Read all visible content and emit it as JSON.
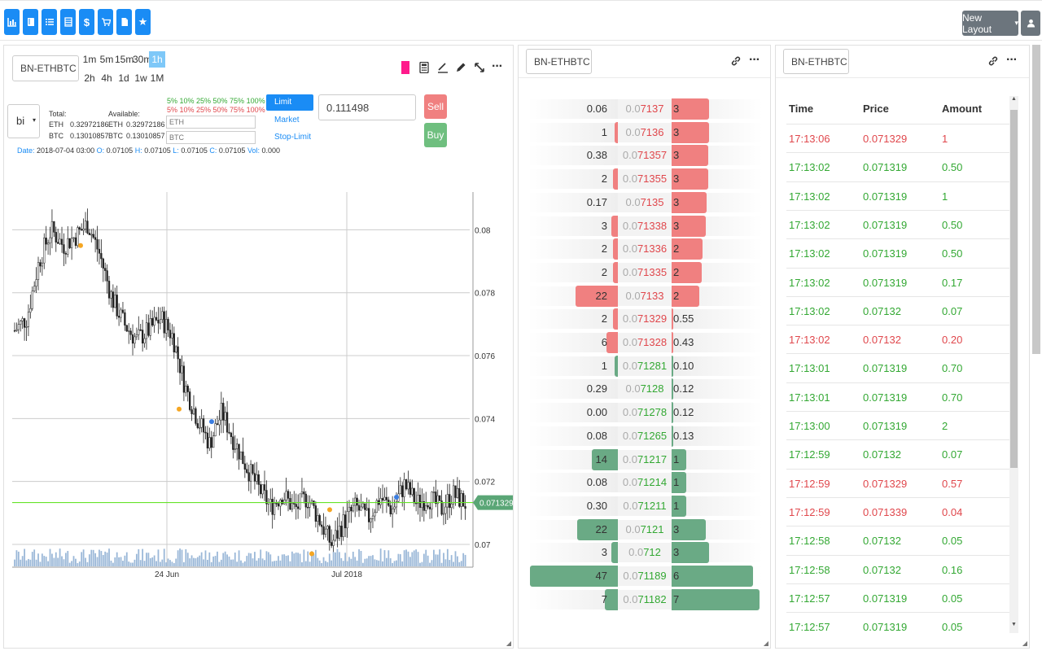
{
  "toolbar": {
    "buttons": [
      {
        "icon": "bar-chart-icon"
      },
      {
        "icon": "book-icon"
      },
      {
        "icon": "list-icon"
      },
      {
        "icon": "table-icon"
      },
      {
        "icon": "dollar-icon"
      },
      {
        "icon": "cart-icon"
      },
      {
        "icon": "file-icon"
      },
      {
        "icon": "star-icon"
      }
    ],
    "layout_label": "New Layout",
    "layout_caret": "▾"
  },
  "chart_panel": {
    "symbol": "BN-ETHBTC",
    "timeframes": [
      "1m",
      "5m",
      "15m",
      "30m",
      "1h",
      "2h",
      "4h",
      "1d",
      "1w",
      "1M"
    ],
    "active_timeframe": "1h",
    "select_value": "bi",
    "select_caret": "▾",
    "total_label": "Total:",
    "available_label": "Available:",
    "eth_label": "ETH",
    "btc_label": "BTC",
    "total_eth": "0.32972186",
    "total_btc": "0.13010857",
    "avail_eth": "0.32972186",
    "avail_btc": "0.13010857",
    "pct_buy": "5% 10% 25% 50% 75% 100%",
    "pct_sell": "5% 10% 25% 50% 75% 100%",
    "eth_placeholder": "ETH",
    "btc_placeholder": "BTC",
    "order_types": [
      "Limit",
      "Market",
      "Stop-Limit"
    ],
    "price_value": "0.111498",
    "sell_label": "Sell",
    "buy_label": "Buy",
    "ohlc": {
      "date_label": "Date:",
      "date": "2018-07-04 03:00",
      "o_label": "O:",
      "o": "0.07105",
      "h_label": "H:",
      "h": "0.07105",
      "l_label": "L:",
      "l": "0.07105",
      "c_label": "C:",
      "c": "0.07105",
      "vol_label": "Vol:",
      "vol": "0.000"
    },
    "current_price": "0.071329",
    "accent_color": "#ff1a8c"
  },
  "chart_data": {
    "type": "candlestick",
    "y_ticks": [
      "0.08",
      "0.078",
      "0.076",
      "0.074",
      "0.072",
      "0.07"
    ],
    "x_ticks": [
      "24 Jun",
      "Jul 2018"
    ],
    "ylim": [
      0.0693,
      0.0812
    ],
    "last_price": 0.071329,
    "close_path": [
      [
        0,
        0.0768
      ],
      [
        3,
        0.0772
      ],
      [
        6,
        0.079
      ],
      [
        9,
        0.08
      ],
      [
        12,
        0.0795
      ],
      [
        15,
        0.0798
      ],
      [
        18,
        0.0802
      ],
      [
        21,
        0.0792
      ],
      [
        24,
        0.0778
      ],
      [
        27,
        0.077
      ],
      [
        30,
        0.0765
      ],
      [
        33,
        0.0768
      ],
      [
        36,
        0.0772
      ],
      [
        39,
        0.0766
      ],
      [
        42,
        0.075
      ],
      [
        45,
        0.074
      ],
      [
        48,
        0.0732
      ],
      [
        51,
        0.0742
      ],
      [
        54,
        0.0733
      ],
      [
        57,
        0.0725
      ],
      [
        60,
        0.0718
      ],
      [
        63,
        0.0712
      ],
      [
        66,
        0.0716
      ],
      [
        69,
        0.0711
      ],
      [
        72,
        0.0715
      ],
      [
        75,
        0.0708
      ],
      [
        78,
        0.07
      ],
      [
        81,
        0.0707
      ],
      [
        84,
        0.0712
      ],
      [
        87,
        0.0708
      ],
      [
        90,
        0.0715
      ],
      [
        93,
        0.0711
      ],
      [
        96,
        0.0719
      ],
      [
        99,
        0.0713
      ],
      [
        102,
        0.0715
      ],
      [
        105,
        0.0711
      ],
      [
        108,
        0.0716
      ],
      [
        111,
        0.0713
      ]
    ],
    "volume_color": "#9bb8d8",
    "grid": true
  },
  "orderbook": {
    "symbol": "BN-ETHBTC",
    "ask_color": "#f08080",
    "bid_color": "#6aaa85",
    "rows": [
      {
        "side": "ask",
        "qty": "0.06",
        "price_dim": "0.0",
        "price": "7137",
        "total": "3",
        "lw": 0,
        "rw": 46
      },
      {
        "side": "ask",
        "qty": "1",
        "price_dim": "0.0",
        "price": "7136",
        "total": "3",
        "lw": 4,
        "rw": 46
      },
      {
        "side": "ask",
        "qty": "0.38",
        "price_dim": "0.0",
        "price": "71357",
        "total": "3",
        "lw": 0,
        "rw": 45
      },
      {
        "side": "ask",
        "qty": "2",
        "price_dim": "0.0",
        "price": "71355",
        "total": "3",
        "lw": 6,
        "rw": 45
      },
      {
        "side": "ask",
        "qty": "0.17",
        "price_dim": "0.0",
        "price": "7135",
        "total": "3",
        "lw": 0,
        "rw": 43
      },
      {
        "side": "ask",
        "qty": "3",
        "price_dim": "0.0",
        "price": "71338",
        "total": "3",
        "lw": 8,
        "rw": 42
      },
      {
        "side": "ask",
        "qty": "2",
        "price_dim": "0.0",
        "price": "71336",
        "total": "2",
        "lw": 6,
        "rw": 38
      },
      {
        "side": "ask",
        "qty": "2",
        "price_dim": "0.0",
        "price": "71335",
        "total": "2",
        "lw": 6,
        "rw": 37
      },
      {
        "side": "ask",
        "qty": "22",
        "price_dim": "0.0",
        "price": "7133",
        "total": "2",
        "lw": 52,
        "rw": 34
      },
      {
        "side": "ask",
        "qty": "2",
        "price_dim": "0.0",
        "price": "71329",
        "total": "0.55",
        "lw": 6,
        "rw": 2
      },
      {
        "side": "ask",
        "qty": "6",
        "price_dim": "0.0",
        "price": "71328",
        "total": "0.43",
        "lw": 14,
        "rw": 2
      },
      {
        "side": "bid",
        "qty": "1",
        "price_dim": "0.0",
        "price": "71281",
        "total": "0.10",
        "lw": 4,
        "rw": 2
      },
      {
        "side": "bid",
        "qty": "0.29",
        "price_dim": "0.0",
        "price": "7128",
        "total": "0.12",
        "lw": 0,
        "rw": 2
      },
      {
        "side": "bid",
        "qty": "0.00",
        "price_dim": "0.0",
        "price": "71278",
        "total": "0.12",
        "lw": 0,
        "rw": 2
      },
      {
        "side": "bid",
        "qty": "0.08",
        "price_dim": "0.0",
        "price": "71265",
        "total": "0.13",
        "lw": 0,
        "rw": 2
      },
      {
        "side": "bid",
        "qty": "14",
        "price_dim": "0.0",
        "price": "71217",
        "total": "1",
        "lw": 32,
        "rw": 18
      },
      {
        "side": "bid",
        "qty": "0.08",
        "price_dim": "0.0",
        "price": "71214",
        "total": "1",
        "lw": 0,
        "rw": 18
      },
      {
        "side": "bid",
        "qty": "0.30",
        "price_dim": "0.0",
        "price": "71211",
        "total": "1",
        "lw": 0,
        "rw": 18
      },
      {
        "side": "bid",
        "qty": "22",
        "price_dim": "0.0",
        "price": "7121",
        "total": "3",
        "lw": 50,
        "rw": 42
      },
      {
        "side": "bid",
        "qty": "3",
        "price_dim": "0.0",
        "price": "712",
        "total": "3",
        "lw": 8,
        "rw": 46
      },
      {
        "side": "bid",
        "qty": "47",
        "price_dim": "0.0",
        "price": "71189",
        "total": "6",
        "lw": 108,
        "rw": 100
      },
      {
        "side": "bid",
        "qty": "7",
        "price_dim": "0.0",
        "price": "71182",
        "total": "7",
        "lw": 16,
        "rw": 108
      }
    ]
  },
  "trades": {
    "symbol": "BN-ETHBTC",
    "headers": {
      "time": "Time",
      "price": "Price",
      "amount": "Amount"
    },
    "sell_color": "#e0474c",
    "buy_color": "#33a833",
    "rows": [
      {
        "time": "17:13:06",
        "price": "0.071329",
        "amount": "1",
        "side": "sell"
      },
      {
        "time": "17:13:02",
        "price": "0.071319",
        "amount": "0.50",
        "side": "buy"
      },
      {
        "time": "17:13:02",
        "price": "0.071319",
        "amount": "1",
        "side": "buy"
      },
      {
        "time": "17:13:02",
        "price": "0.071319",
        "amount": "0.50",
        "side": "buy"
      },
      {
        "time": "17:13:02",
        "price": "0.071319",
        "amount": "0.50",
        "side": "buy"
      },
      {
        "time": "17:13:02",
        "price": "0.071319",
        "amount": "0.17",
        "side": "buy"
      },
      {
        "time": "17:13:02",
        "price": "0.07132",
        "amount": "0.07",
        "side": "buy"
      },
      {
        "time": "17:13:02",
        "price": "0.07132",
        "amount": "0.20",
        "side": "sell"
      },
      {
        "time": "17:13:01",
        "price": "0.071319",
        "amount": "0.70",
        "side": "buy"
      },
      {
        "time": "17:13:01",
        "price": "0.071319",
        "amount": "0.70",
        "side": "buy"
      },
      {
        "time": "17:13:00",
        "price": "0.071319",
        "amount": "2",
        "side": "buy"
      },
      {
        "time": "17:12:59",
        "price": "0.07132",
        "amount": "0.07",
        "side": "buy"
      },
      {
        "time": "17:12:59",
        "price": "0.071329",
        "amount": "0.57",
        "side": "sell"
      },
      {
        "time": "17:12:59",
        "price": "0.071339",
        "amount": "0.04",
        "side": "sell"
      },
      {
        "time": "17:12:58",
        "price": "0.07132",
        "amount": "0.05",
        "side": "buy"
      },
      {
        "time": "17:12:58",
        "price": "0.07132",
        "amount": "0.16",
        "side": "buy"
      },
      {
        "time": "17:12:57",
        "price": "0.071319",
        "amount": "0.05",
        "side": "buy"
      },
      {
        "time": "17:12:57",
        "price": "0.071319",
        "amount": "0.05",
        "side": "buy"
      }
    ]
  }
}
